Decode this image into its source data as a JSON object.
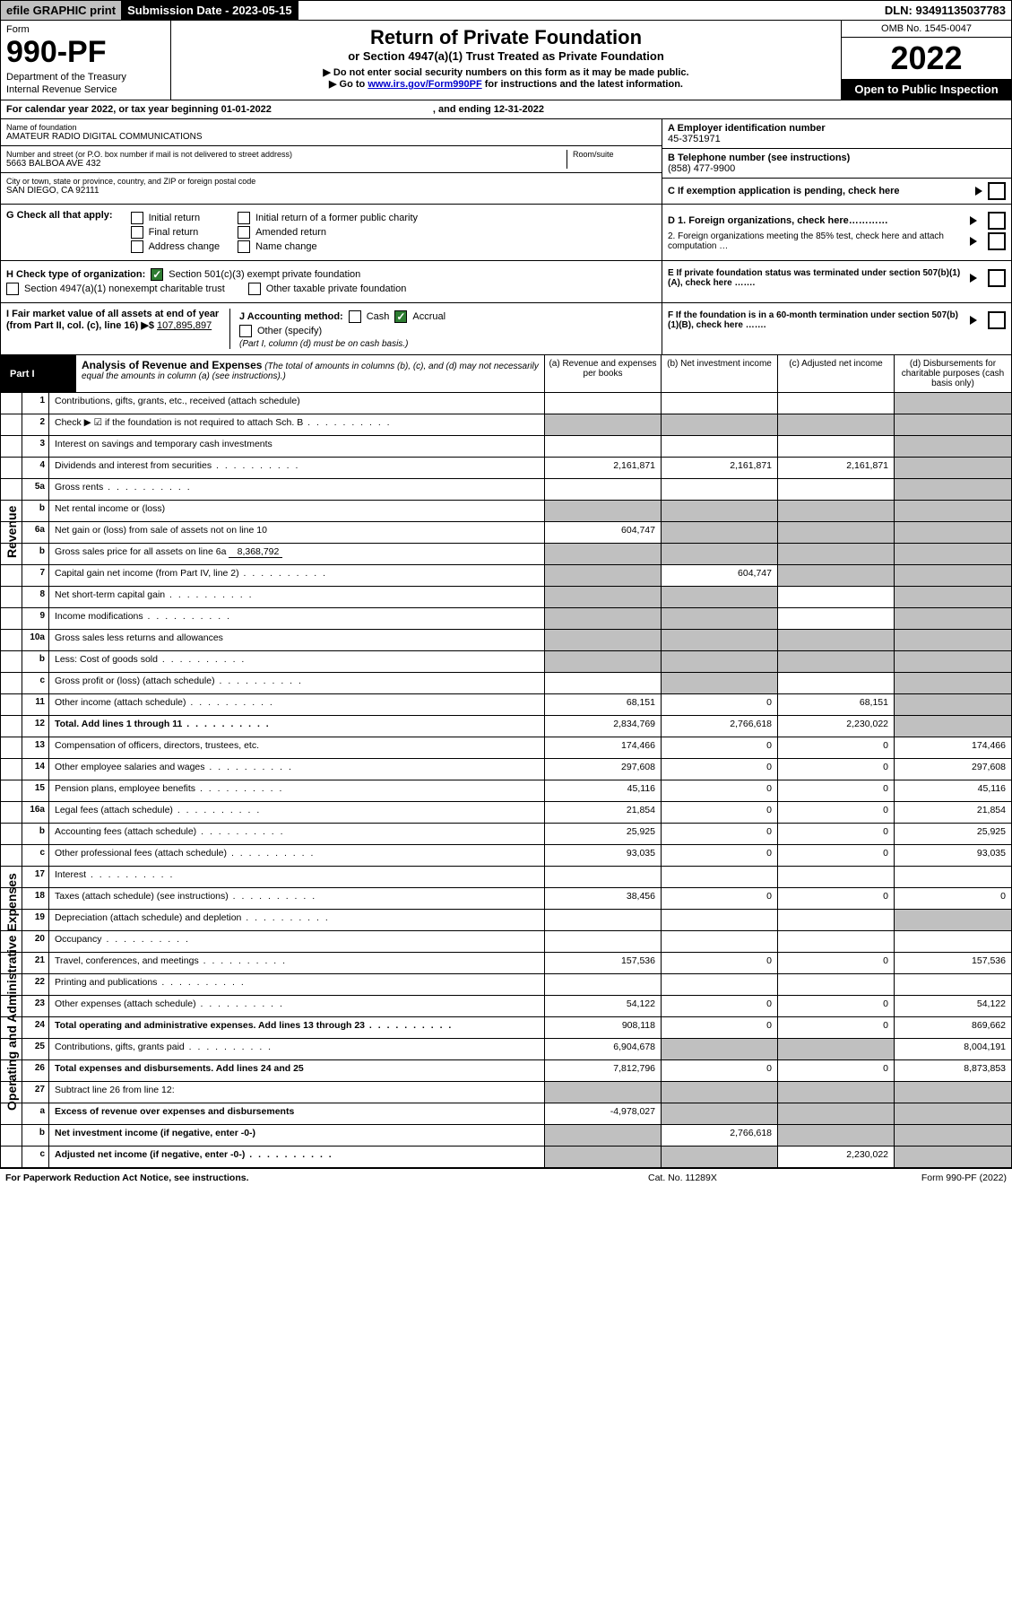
{
  "topbar": {
    "efile": "efile GRAPHIC print",
    "subdate_label": "Submission Date - 2023-05-15",
    "dln": "DLN: 93491135037783"
  },
  "header": {
    "form_label": "Form",
    "form_number": "990-PF",
    "dept": "Department of the Treasury",
    "irs": "Internal Revenue Service",
    "title": "Return of Private Foundation",
    "subtitle": "or Section 4947(a)(1) Trust Treated as Private Foundation",
    "note1": "▶ Do not enter social security numbers on this form as it may be made public.",
    "note2_pre": "▶ Go to ",
    "note2_link": "www.irs.gov/Form990PF",
    "note2_post": " for instructions and the latest information.",
    "omb": "OMB No. 1545-0047",
    "year": "2022",
    "open": "Open to Public Inspection"
  },
  "calendar": {
    "text": "For calendar year 2022, or tax year beginning 01-01-2022",
    "ending": ", and ending 12-31-2022"
  },
  "identity": {
    "name_label": "Name of foundation",
    "name_value": "AMATEUR RADIO DIGITAL COMMUNICATIONS",
    "street_label": "Number and street (or P.O. box number if mail is not delivered to street address)",
    "room_label": "Room/suite",
    "street_value": "5663 BALBOA AVE 432",
    "city_label": "City or town, state or province, country, and ZIP or foreign postal code",
    "city_value": "SAN DIEGO, CA  92111",
    "a_label": "A Employer identification number",
    "a_value": "45-3751971",
    "b_label": "B Telephone number (see instructions)",
    "b_value": "(858) 477-9900",
    "c_label": "C If exemption application is pending, check here"
  },
  "checks": {
    "g_label": "G Check all that apply:",
    "g_opts": [
      "Initial return",
      "Final return",
      "Address change",
      "Initial return of a former public charity",
      "Amended return",
      "Name change"
    ],
    "d1": "D 1. Foreign organizations, check here…………",
    "d2": "2. Foreign organizations meeting the 85% test, check here and attach computation …",
    "h_label": "H Check type of organization:",
    "h_opt1": "Section 501(c)(3) exempt private foundation",
    "h_opt2": "Section 4947(a)(1) nonexempt charitable trust",
    "h_opt3": "Other taxable private foundation",
    "e_label": "E If private foundation status was terminated under section 507(b)(1)(A), check here …….",
    "i_label": "I Fair market value of all assets at end of year (from Part II, col. (c), line 16) ▶$",
    "i_value": "107,895,897",
    "j_label": "J Accounting method:",
    "j_cash": "Cash",
    "j_accrual": "Accrual",
    "j_other": "Other (specify)",
    "j_note": "(Part I, column (d) must be on cash basis.)",
    "f_label": "F If the foundation is in a 60-month termination under section 507(b)(1)(B), check here ……."
  },
  "part1": {
    "label": "Part I",
    "title": "Analysis of Revenue and Expenses",
    "subtitle": "(The total of amounts in columns (b), (c), and (d) may not necessarily equal the amounts in column (a) (see instructions).)",
    "col_a": "(a) Revenue and expenses per books",
    "col_b": "(b) Net investment income",
    "col_c": "(c) Adjusted net income",
    "col_d": "(d) Disbursements for charitable purposes (cash basis only)",
    "revenue_label": "Revenue",
    "expense_label": "Operating and Administrative Expenses"
  },
  "rows": [
    {
      "num": "1",
      "desc": "Contributions, gifts, grants, etc., received (attach schedule)",
      "a": "",
      "b": "",
      "c": "",
      "d": "",
      "d_shaded": true
    },
    {
      "num": "2",
      "desc": "Check ▶ ☑ if the foundation is not required to attach Sch. B",
      "dots": true,
      "a": "",
      "b": "",
      "c": "",
      "d": "",
      "a_shaded": true,
      "b_shaded": true,
      "c_shaded": true,
      "d_shaded": true
    },
    {
      "num": "3",
      "desc": "Interest on savings and temporary cash investments",
      "a": "",
      "b": "",
      "c": "",
      "d": "",
      "d_shaded": true
    },
    {
      "num": "4",
      "desc": "Dividends and interest from securities",
      "dots": true,
      "a": "2,161,871",
      "b": "2,161,871",
      "c": "2,161,871",
      "d": "",
      "d_shaded": true
    },
    {
      "num": "5a",
      "desc": "Gross rents",
      "dots": true,
      "a": "",
      "b": "",
      "c": "",
      "d": "",
      "d_shaded": true
    },
    {
      "num": "b",
      "desc": "Net rental income or (loss)",
      "a": "",
      "b": "",
      "c": "",
      "d": "",
      "a_shaded": true,
      "b_shaded": true,
      "c_shaded": true,
      "d_shaded": true
    },
    {
      "num": "6a",
      "desc": "Net gain or (loss) from sale of assets not on line 10",
      "a": "604,747",
      "b": "",
      "c": "",
      "d": "",
      "b_shaded": true,
      "c_shaded": true,
      "d_shaded": true
    },
    {
      "num": "b",
      "desc": "Gross sales price for all assets on line 6a",
      "inline": "8,368,792",
      "a": "",
      "b": "",
      "c": "",
      "d": "",
      "a_shaded": true,
      "b_shaded": true,
      "c_shaded": true,
      "d_shaded": true
    },
    {
      "num": "7",
      "desc": "Capital gain net income (from Part IV, line 2)",
      "dots": true,
      "a": "",
      "b": "604,747",
      "c": "",
      "d": "",
      "a_shaded": true,
      "c_shaded": true,
      "d_shaded": true
    },
    {
      "num": "8",
      "desc": "Net short-term capital gain",
      "dots": true,
      "a": "",
      "b": "",
      "c": "",
      "d": "",
      "a_shaded": true,
      "b_shaded": true,
      "d_shaded": true
    },
    {
      "num": "9",
      "desc": "Income modifications",
      "dots": true,
      "a": "",
      "b": "",
      "c": "",
      "d": "",
      "a_shaded": true,
      "b_shaded": true,
      "d_shaded": true
    },
    {
      "num": "10a",
      "desc": "Gross sales less returns and allowances",
      "a": "",
      "b": "",
      "c": "",
      "d": "",
      "a_shaded": true,
      "b_shaded": true,
      "c_shaded": true,
      "d_shaded": true
    },
    {
      "num": "b",
      "desc": "Less: Cost of goods sold",
      "dots": true,
      "a": "",
      "b": "",
      "c": "",
      "d": "",
      "a_shaded": true,
      "b_shaded": true,
      "c_shaded": true,
      "d_shaded": true
    },
    {
      "num": "c",
      "desc": "Gross profit or (loss) (attach schedule)",
      "dots": true,
      "a": "",
      "b": "",
      "c": "",
      "d": "",
      "b_shaded": true,
      "d_shaded": true
    },
    {
      "num": "11",
      "desc": "Other income (attach schedule)",
      "dots": true,
      "a": "68,151",
      "b": "0",
      "c": "68,151",
      "d": "",
      "d_shaded": true
    },
    {
      "num": "12",
      "desc": "Total. Add lines 1 through 11",
      "dots": true,
      "bold": true,
      "a": "2,834,769",
      "b": "2,766,618",
      "c": "2,230,022",
      "d": "",
      "d_shaded": true
    },
    {
      "num": "13",
      "desc": "Compensation of officers, directors, trustees, etc.",
      "a": "174,466",
      "b": "0",
      "c": "0",
      "d": "174,466",
      "section": "expense"
    },
    {
      "num": "14",
      "desc": "Other employee salaries and wages",
      "dots": true,
      "a": "297,608",
      "b": "0",
      "c": "0",
      "d": "297,608"
    },
    {
      "num": "15",
      "desc": "Pension plans, employee benefits",
      "dots": true,
      "a": "45,116",
      "b": "0",
      "c": "0",
      "d": "45,116"
    },
    {
      "num": "16a",
      "desc": "Legal fees (attach schedule)",
      "dots": true,
      "a": "21,854",
      "b": "0",
      "c": "0",
      "d": "21,854"
    },
    {
      "num": "b",
      "desc": "Accounting fees (attach schedule)",
      "dots": true,
      "a": "25,925",
      "b": "0",
      "c": "0",
      "d": "25,925"
    },
    {
      "num": "c",
      "desc": "Other professional fees (attach schedule)",
      "dots": true,
      "a": "93,035",
      "b": "0",
      "c": "0",
      "d": "93,035"
    },
    {
      "num": "17",
      "desc": "Interest",
      "dots": true,
      "a": "",
      "b": "",
      "c": "",
      "d": ""
    },
    {
      "num": "18",
      "desc": "Taxes (attach schedule) (see instructions)",
      "dots": true,
      "a": "38,456",
      "b": "0",
      "c": "0",
      "d": "0"
    },
    {
      "num": "19",
      "desc": "Depreciation (attach schedule) and depletion",
      "dots": true,
      "a": "",
      "b": "",
      "c": "",
      "d": "",
      "d_shaded": true
    },
    {
      "num": "20",
      "desc": "Occupancy",
      "dots": true,
      "a": "",
      "b": "",
      "c": "",
      "d": ""
    },
    {
      "num": "21",
      "desc": "Travel, conferences, and meetings",
      "dots": true,
      "a": "157,536",
      "b": "0",
      "c": "0",
      "d": "157,536"
    },
    {
      "num": "22",
      "desc": "Printing and publications",
      "dots": true,
      "a": "",
      "b": "",
      "c": "",
      "d": ""
    },
    {
      "num": "23",
      "desc": "Other expenses (attach schedule)",
      "dots": true,
      "a": "54,122",
      "b": "0",
      "c": "0",
      "d": "54,122"
    },
    {
      "num": "24",
      "desc": "Total operating and administrative expenses. Add lines 13 through 23",
      "dots": true,
      "bold": true,
      "a": "908,118",
      "b": "0",
      "c": "0",
      "d": "869,662"
    },
    {
      "num": "25",
      "desc": "Contributions, gifts, grants paid",
      "dots": true,
      "a": "6,904,678",
      "b": "",
      "c": "",
      "d": "8,004,191",
      "b_shaded": true,
      "c_shaded": true
    },
    {
      "num": "26",
      "desc": "Total expenses and disbursements. Add lines 24 and 25",
      "bold": true,
      "a": "7,812,796",
      "b": "0",
      "c": "0",
      "d": "8,873,853"
    },
    {
      "num": "27",
      "desc": "Subtract line 26 from line 12:",
      "a": "",
      "b": "",
      "c": "",
      "d": "",
      "a_shaded": true,
      "b_shaded": true,
      "c_shaded": true,
      "d_shaded": true
    },
    {
      "num": "a",
      "desc": "Excess of revenue over expenses and disbursements",
      "bold": true,
      "a": "-4,978,027",
      "b": "",
      "c": "",
      "d": "",
      "b_shaded": true,
      "c_shaded": true,
      "d_shaded": true
    },
    {
      "num": "b",
      "desc": "Net investment income (if negative, enter -0-)",
      "bold": true,
      "a": "",
      "b": "2,766,618",
      "c": "",
      "d": "",
      "a_shaded": true,
      "c_shaded": true,
      "d_shaded": true
    },
    {
      "num": "c",
      "desc": "Adjusted net income (if negative, enter -0-)",
      "dots": true,
      "bold": true,
      "a": "",
      "b": "",
      "c": "2,230,022",
      "d": "",
      "a_shaded": true,
      "b_shaded": true,
      "d_shaded": true
    }
  ],
  "footer": {
    "left": "For Paperwork Reduction Act Notice, see instructions.",
    "mid": "Cat. No. 11289X",
    "right": "Form 990-PF (2022)"
  }
}
